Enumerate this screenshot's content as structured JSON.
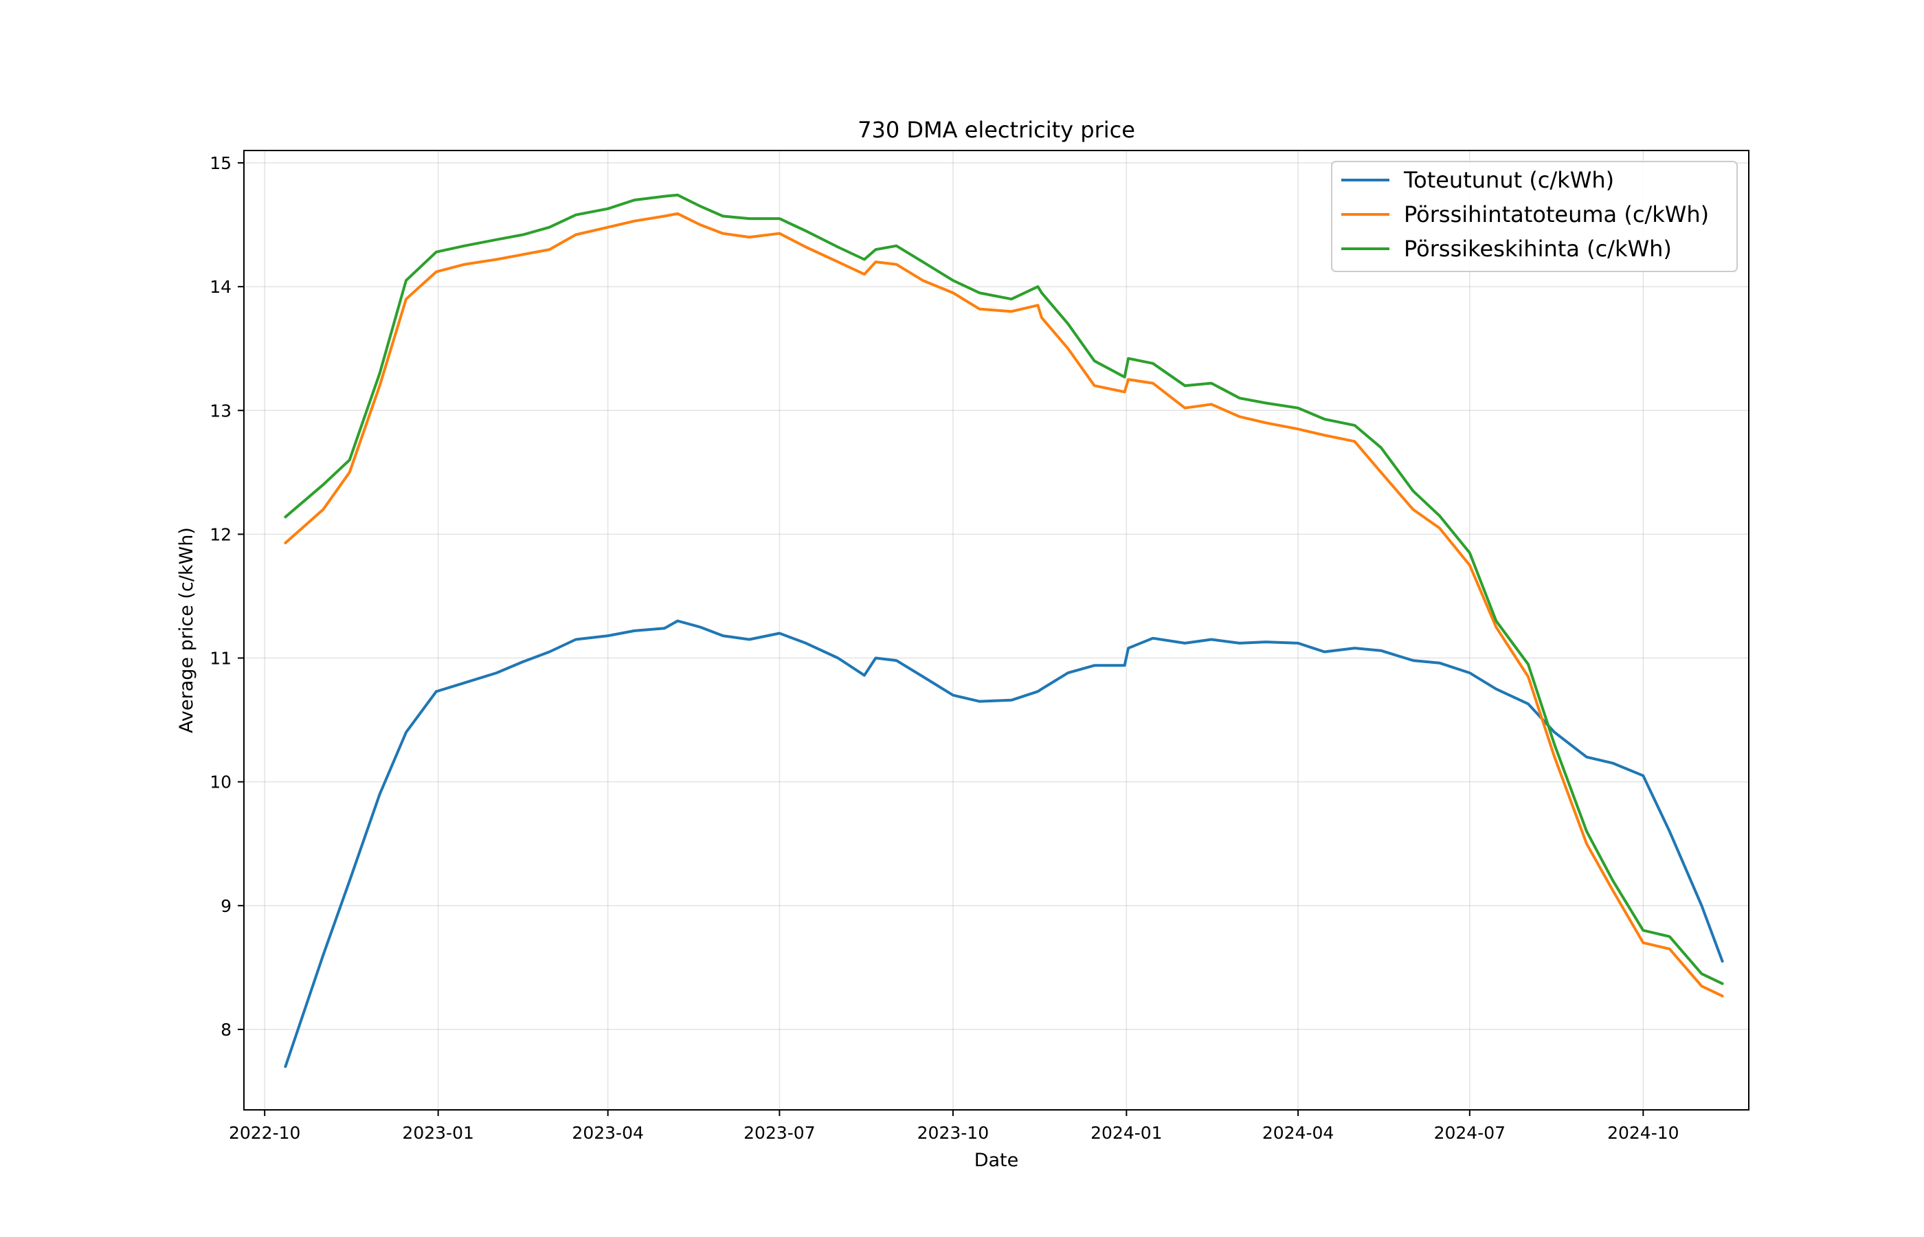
{
  "chart_data": {
    "type": "line",
    "title": "730 DMA electricity price",
    "xlabel": "Date",
    "ylabel": "Average price (c/kWh)",
    "x_ticks": [
      "2022-10",
      "2023-01",
      "2023-04",
      "2023-07",
      "2023-10",
      "2024-01",
      "2024-04",
      "2024-07",
      "2024-10"
    ],
    "y_ticks": [
      "8",
      "9",
      "10",
      "11",
      "12",
      "13",
      "14",
      "15"
    ],
    "ylim": [
      7.35,
      15.1
    ],
    "xlim": [
      "2022-09-20",
      "2024-11-26"
    ],
    "grid": true,
    "legend_position": "top-right",
    "x": [
      "2022-10-12",
      "2022-11-01",
      "2022-11-15",
      "2022-12-01",
      "2022-12-15",
      "2022-12-31",
      "2023-01-15",
      "2023-02-01",
      "2023-02-15",
      "2023-03-01",
      "2023-03-15",
      "2023-04-01",
      "2023-04-15",
      "2023-05-01",
      "2023-05-08",
      "2023-05-20",
      "2023-06-01",
      "2023-06-15",
      "2023-07-01",
      "2023-07-15",
      "2023-08-01",
      "2023-08-15",
      "2023-08-21",
      "2023-09-01",
      "2023-09-15",
      "2023-10-01",
      "2023-10-15",
      "2023-11-01",
      "2023-11-15",
      "2023-11-17",
      "2023-12-01",
      "2023-12-15",
      "2023-12-31",
      "2024-01-02",
      "2024-01-15",
      "2024-02-01",
      "2024-02-15",
      "2024-03-01",
      "2024-03-15",
      "2024-04-01",
      "2024-04-15",
      "2024-05-01",
      "2024-05-15",
      "2024-06-01",
      "2024-06-15",
      "2024-07-01",
      "2024-07-15",
      "2024-08-01",
      "2024-08-15",
      "2024-09-01",
      "2024-09-15",
      "2024-10-01",
      "2024-10-15",
      "2024-11-01",
      "2024-11-12"
    ],
    "series": [
      {
        "name": "Toteutunut (c/kWh)",
        "color": "#1f77b4",
        "values": [
          7.7,
          8.6,
          9.2,
          9.9,
          10.4,
          10.73,
          10.8,
          10.88,
          10.97,
          11.05,
          11.15,
          11.18,
          11.22,
          11.24,
          11.3,
          11.25,
          11.18,
          11.15,
          11.2,
          11.12,
          11.0,
          10.86,
          11.0,
          10.98,
          10.85,
          10.7,
          10.65,
          10.66,
          10.73,
          10.75,
          10.88,
          10.94,
          10.94,
          11.08,
          11.16,
          11.12,
          11.15,
          11.12,
          11.13,
          11.12,
          11.05,
          11.08,
          11.06,
          10.98,
          10.96,
          10.88,
          10.75,
          10.63,
          10.4,
          10.2,
          10.15,
          10.05,
          9.6,
          9.0,
          8.55
        ]
      },
      {
        "name": "Pörssihintatoteuma (c/kWh)",
        "color": "#ff7f0e",
        "values": [
          11.93,
          12.2,
          12.5,
          13.2,
          13.9,
          14.12,
          14.18,
          14.22,
          14.26,
          14.3,
          14.42,
          14.48,
          14.53,
          14.57,
          14.59,
          14.5,
          14.43,
          14.4,
          14.43,
          14.32,
          14.2,
          14.1,
          14.2,
          14.18,
          14.05,
          13.95,
          13.82,
          13.8,
          13.85,
          13.75,
          13.5,
          13.2,
          13.15,
          13.25,
          13.22,
          13.02,
          13.05,
          12.95,
          12.9,
          12.85,
          12.8,
          12.75,
          12.5,
          12.2,
          12.05,
          11.75,
          11.25,
          10.85,
          10.2,
          9.5,
          9.12,
          8.7,
          8.65,
          8.35,
          8.27
        ]
      },
      {
        "name": "Pörssikeskihinta (c/kWh)",
        "color": "#2ca02c",
        "values": [
          12.14,
          12.4,
          12.6,
          13.3,
          14.05,
          14.28,
          14.33,
          14.38,
          14.42,
          14.48,
          14.58,
          14.63,
          14.7,
          14.73,
          14.74,
          14.65,
          14.57,
          14.55,
          14.55,
          14.45,
          14.32,
          14.22,
          14.3,
          14.33,
          14.2,
          14.05,
          13.95,
          13.9,
          14.0,
          13.95,
          13.7,
          13.4,
          13.27,
          13.42,
          13.38,
          13.2,
          13.22,
          13.1,
          13.06,
          13.02,
          12.93,
          12.88,
          12.7,
          12.35,
          12.15,
          11.85,
          11.3,
          10.95,
          10.3,
          9.6,
          9.2,
          8.8,
          8.75,
          8.45,
          8.37
        ]
      }
    ]
  }
}
